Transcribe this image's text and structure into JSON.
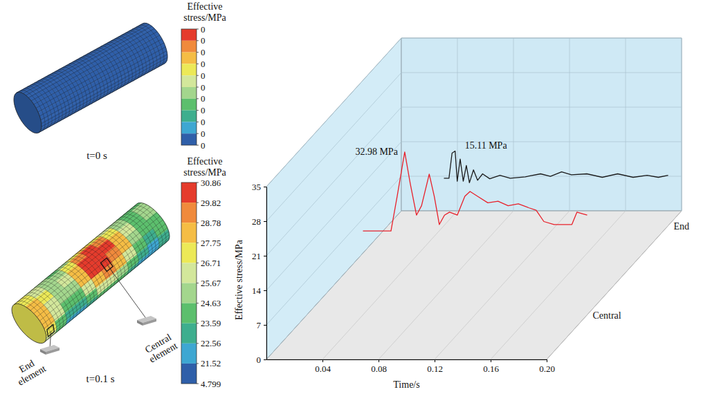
{
  "chart_data": [
    {
      "type": "contour",
      "title": "Effective stress/MPa",
      "subtitle": "t=0 s",
      "colorbar": {
        "ticks": [
          0,
          0,
          0,
          0,
          0,
          0,
          0,
          0,
          0,
          0,
          0
        ],
        "colors": [
          "#e53b2c",
          "#f08a3c",
          "#f5bd45",
          "#ece957",
          "#d3e79b",
          "#a3d68d",
          "#5cbf6d",
          "#3eae8e",
          "#3ea7d2",
          "#2f5fa9"
        ]
      },
      "cells": [
        [
          0,
          0,
          0,
          0,
          0,
          0,
          0,
          0,
          0,
          0,
          0,
          0
        ],
        [
          0,
          0,
          0,
          0,
          0,
          0,
          0,
          0,
          0,
          0,
          0,
          0
        ],
        [
          0,
          0,
          0,
          0,
          0,
          0,
          0,
          0,
          0,
          0,
          0,
          0
        ],
        [
          0,
          0,
          0,
          0,
          0,
          0,
          0,
          0,
          0,
          0,
          0,
          0
        ],
        [
          0,
          0,
          0,
          0,
          0,
          0,
          0,
          0,
          0,
          0,
          0,
          0
        ],
        [
          0,
          0,
          0,
          0,
          0,
          0,
          0,
          0,
          0,
          0,
          0,
          0
        ],
        [
          0,
          0,
          0,
          0,
          0,
          0,
          0,
          0,
          0,
          0,
          0,
          0
        ]
      ]
    },
    {
      "type": "contour",
      "title": "Effective stress/MPa",
      "subtitle": "t=0.1 s",
      "colorbar": {
        "ticks": [
          30.86,
          29.82,
          28.78,
          27.75,
          26.71,
          25.67,
          24.63,
          23.59,
          22.56,
          21.52,
          4.799
        ],
        "colors": [
          "#e53b2c",
          "#f08a3c",
          "#f5bd45",
          "#ece957",
          "#d3e79b",
          "#a3d68d",
          "#5cbf6d",
          "#3eae8e",
          "#3ea7d2",
          "#2f5fa9"
        ]
      },
      "cells": [
        [
          27.0,
          26.2,
          25.0,
          24.2,
          25.5,
          27.0,
          28.0,
          27.5,
          26.0,
          24.8,
          24.0,
          24.5
        ],
        [
          27.5,
          26.5,
          25.2,
          25.0,
          27.2,
          29.0,
          30.0,
          29.3,
          27.5,
          25.5,
          24.3,
          24.8
        ],
        [
          28.2,
          26.8,
          25.5,
          26.0,
          28.6,
          30.3,
          30.7,
          30.2,
          28.4,
          26.0,
          24.5,
          25.0
        ],
        [
          28.5,
          26.6,
          25.0,
          25.6,
          28.2,
          30.1,
          30.5,
          29.8,
          27.8,
          25.4,
          24.0,
          24.6
        ],
        [
          27.8,
          25.8,
          24.0,
          24.4,
          26.5,
          28.3,
          28.9,
          28.0,
          26.0,
          24.2,
          23.2,
          23.9
        ],
        [
          26.8,
          24.6,
          22.9,
          23.0,
          24.6,
          25.8,
          26.2,
          25.5,
          24.2,
          23.0,
          22.4,
          23.2
        ],
        [
          26.0,
          23.8,
          22.2,
          22.0,
          23.0,
          23.8,
          24.0,
          23.6,
          22.8,
          22.0,
          21.9,
          22.6
        ]
      ],
      "annotations": [
        "Central element",
        "End element"
      ]
    },
    {
      "type": "line",
      "xlabel": "Time/s",
      "ylabel": "Effective stress/MPa",
      "xlim": [
        0,
        0.2
      ],
      "xticks": [
        0.04,
        0.08,
        0.12,
        0.16,
        {
          "value": 0.2,
          "label": "0.20"
        }
      ],
      "ylim": [
        0,
        35
      ],
      "yticks": [
        0,
        7,
        14,
        21,
        28,
        35
      ],
      "grid": true,
      "series": [
        {
          "name": "End",
          "color": "#1a1a1a",
          "annotation": "15.11 MPa",
          "x": [
            0.04,
            0.0436,
            0.0458,
            0.048,
            0.0495,
            0.0516,
            0.0538,
            0.056,
            0.0582,
            0.0611,
            0.064,
            0.0676,
            0.0727,
            0.08,
            0.0873,
            0.098,
            0.109,
            0.116,
            0.124,
            0.131,
            0.142,
            0.153,
            0.164,
            0.175,
            0.185,
            0.193,
            0.2
          ],
          "values": [
            9.6,
            9.6,
            14.7,
            15.11,
            9.0,
            13.5,
            9.0,
            12.2,
            8.7,
            11.3,
            9.2,
            10.5,
            9.5,
            10.2,
            9.6,
            9.9,
            10.5,
            10.0,
            10.9,
            10.3,
            10.5,
            9.8,
            10.5,
            9.8,
            10.2,
            9.8,
            10.2
          ]
        },
        {
          "name": "Central",
          "color": "#e8202a",
          "annotation": "32.98 MPa",
          "x": [
            0.04,
            0.06,
            0.0644,
            0.0698,
            0.0738,
            0.0782,
            0.0818,
            0.0873,
            0.0909,
            0.0945,
            0.0982,
            0.1018,
            0.1073,
            0.1127,
            0.1164,
            0.1218,
            0.1291,
            0.1364,
            0.1436,
            0.1509,
            0.1582,
            0.1636,
            0.1691,
            0.1764,
            0.1891,
            0.1927,
            0.1964,
            0.2
          ],
          "values": [
            17.0,
            17.0,
            24.0,
            32.98,
            26.5,
            20.2,
            22.1,
            28.5,
            24.0,
            18.3,
            20.2,
            20.8,
            20.2,
            24.0,
            25.0,
            24.0,
            22.7,
            23.0,
            22.1,
            22.5,
            21.7,
            21.2,
            18.9,
            18.3,
            18.3,
            20.8,
            20.5,
            20.2
          ]
        }
      ]
    }
  ]
}
